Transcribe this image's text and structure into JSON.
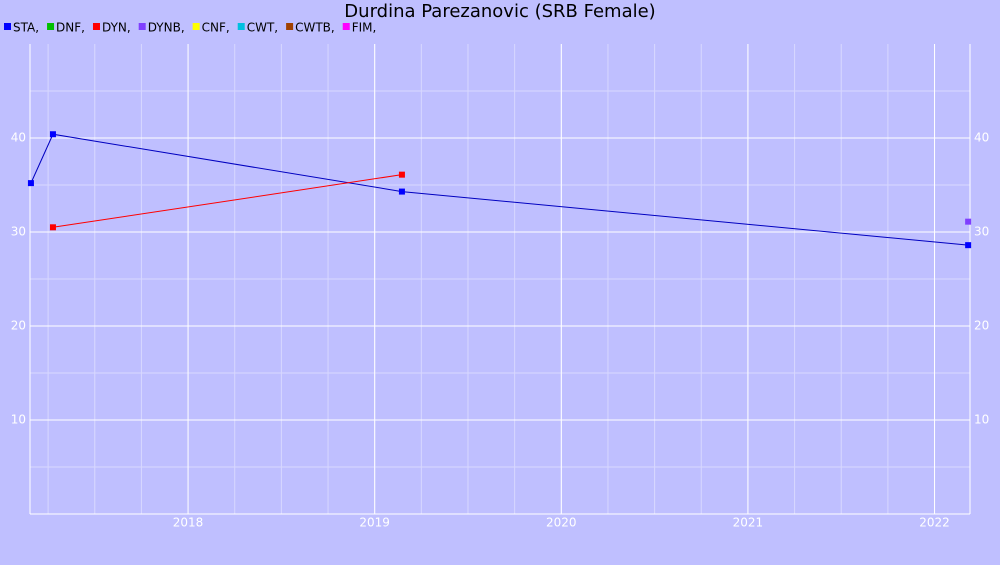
{
  "chart_data": {
    "type": "line",
    "title": "Durdina Parezanovic (SRB Female)",
    "xlim": [
      2017.153,
      2022.19
    ],
    "xticks": [
      2018,
      2019,
      2020,
      2021,
      2022
    ],
    "ylim": [
      0,
      50
    ],
    "yticks": [
      10,
      20,
      30,
      40
    ],
    "grid": true,
    "legend": "top-left",
    "series": [
      {
        "name": "STA,",
        "color": "#0000ff",
        "line_color": "#0000c0",
        "x": [
          2017.158,
          2017.276,
          2019.146,
          2022.18
        ],
        "values": [
          35.2,
          40.4,
          34.3,
          28.6
        ]
      },
      {
        "name": "DNF,",
        "color": "#00c000",
        "x": [],
        "values": []
      },
      {
        "name": "DYN,",
        "color": "#ff0000",
        "line_color": "#ff0000",
        "x": [
          2017.276,
          2019.146
        ],
        "values": [
          30.5,
          36.1
        ]
      },
      {
        "name": "DYNB,",
        "color": "#7f3fff",
        "x": [
          2022.18
        ],
        "values": [
          31.1
        ]
      },
      {
        "name": "CNF,",
        "color": "#ffff00",
        "x": [],
        "values": []
      },
      {
        "name": "CWT,",
        "color": "#00c0e0",
        "x": [],
        "values": []
      },
      {
        "name": "CWTB,",
        "color": "#a04000",
        "x": [],
        "values": []
      },
      {
        "name": "FIM,",
        "color": "#ff00ff",
        "x": [],
        "values": []
      }
    ]
  }
}
